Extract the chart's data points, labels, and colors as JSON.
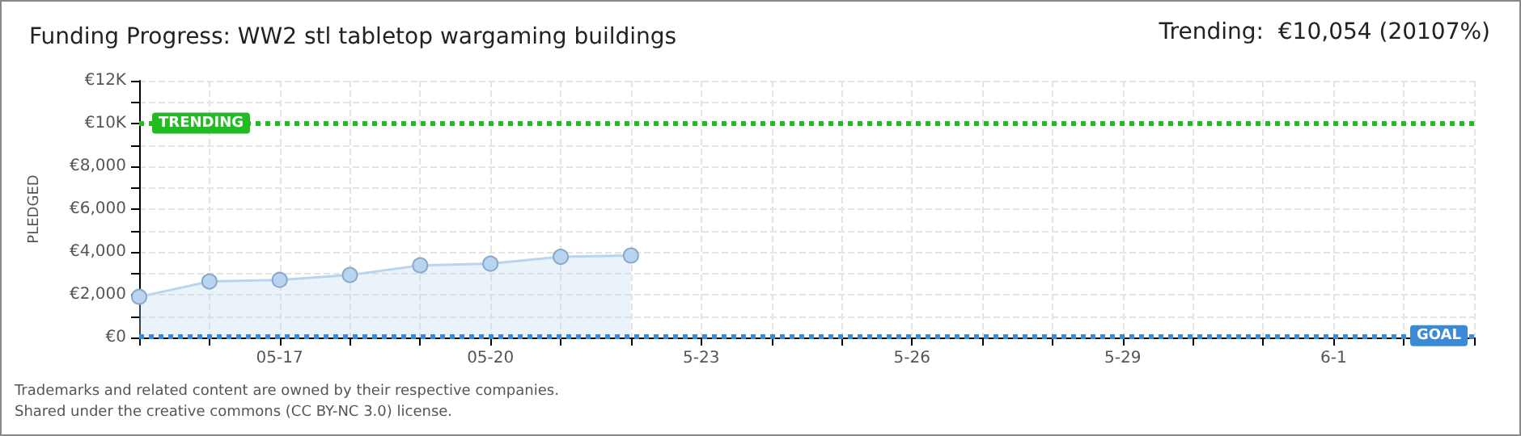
{
  "chart_data": {
    "type": "area",
    "title": "Funding Progress: WW2 stl tabletop wargaming buildings",
    "ylabel": "PLEDGED",
    "annotations": [
      "Trending:  €10,054 (20107%)",
      "Trademarks and related content are owned by their respective companies.",
      "Shared under the creative commons (CC BY-NC 3.0) license."
    ],
    "x": [
      "--05-15",
      "--05-16",
      "--05-17",
      "--05-18",
      "--05-19",
      "--05-20",
      "--05-21",
      "--05-22"
    ],
    "series": [
      {
        "color": "#b8d4f0",
        "values": [
          1900,
          2620,
          2690,
          2920,
          3370,
          3450,
          3770,
          3830
        ]
      }
    ],
    "xlim": [
      "--05-15",
      "--06-03"
    ],
    "xticks": [
      {
        "value": "--05-15",
        "label": null
      },
      {
        "value": "--05-16",
        "label": null
      },
      {
        "value": "--05-17",
        "label": "05-17"
      },
      {
        "value": "--05-18",
        "label": null
      },
      {
        "value": "--05-19",
        "label": null
      },
      {
        "value": "--05-20",
        "label": "05-20"
      },
      {
        "value": "--05-21",
        "label": null
      },
      {
        "value": "--05-22",
        "label": null
      },
      {
        "value": "--05-23",
        "label": "5-23"
      },
      {
        "value": "--05-24",
        "label": null
      },
      {
        "value": "--05-25",
        "label": null
      },
      {
        "value": "--05-26",
        "label": "5-26"
      },
      {
        "value": "--05-27",
        "label": null
      },
      {
        "value": "--05-28",
        "label": null
      },
      {
        "value": "--05-29",
        "label": "5-29"
      },
      {
        "value": "--05-30",
        "label": null
      },
      {
        "value": "--05-31",
        "label": null
      },
      {
        "value": "--06-01",
        "label": "6-1"
      },
      {
        "value": "--06-02",
        "label": null
      },
      {
        "value": "--06-03",
        "label": null
      }
    ],
    "ylim": [
      0,
      12000
    ],
    "yticks": [
      {
        "value": 0,
        "label": "€0"
      },
      {
        "value": 1000,
        "label": null
      },
      {
        "value": 2000,
        "label": "€2,000"
      },
      {
        "value": 3000,
        "label": null
      },
      {
        "value": 4000,
        "label": "€4,000"
      },
      {
        "value": 5000,
        "label": null
      },
      {
        "value": 6000,
        "label": "€6,000"
      },
      {
        "value": 7000,
        "label": null
      },
      {
        "value": 8000,
        "label": "€8,000"
      },
      {
        "value": 9000,
        "label": null
      },
      {
        "value": 10000,
        "label": "€10K"
      },
      {
        "value": 11000,
        "label": null
      },
      {
        "value": 12000,
        "label": "€12K"
      }
    ],
    "ref_lines": [
      {
        "axis": "y",
        "value": 10054,
        "label": "TRENDING",
        "color": "#22bb22",
        "line_style": "dotted"
      },
      {
        "axis": "y",
        "value": 50,
        "label": "GOAL",
        "color": "#3a8ad6",
        "line_style": "dotted"
      }
    ],
    "grid": true,
    "marker": "circle"
  }
}
